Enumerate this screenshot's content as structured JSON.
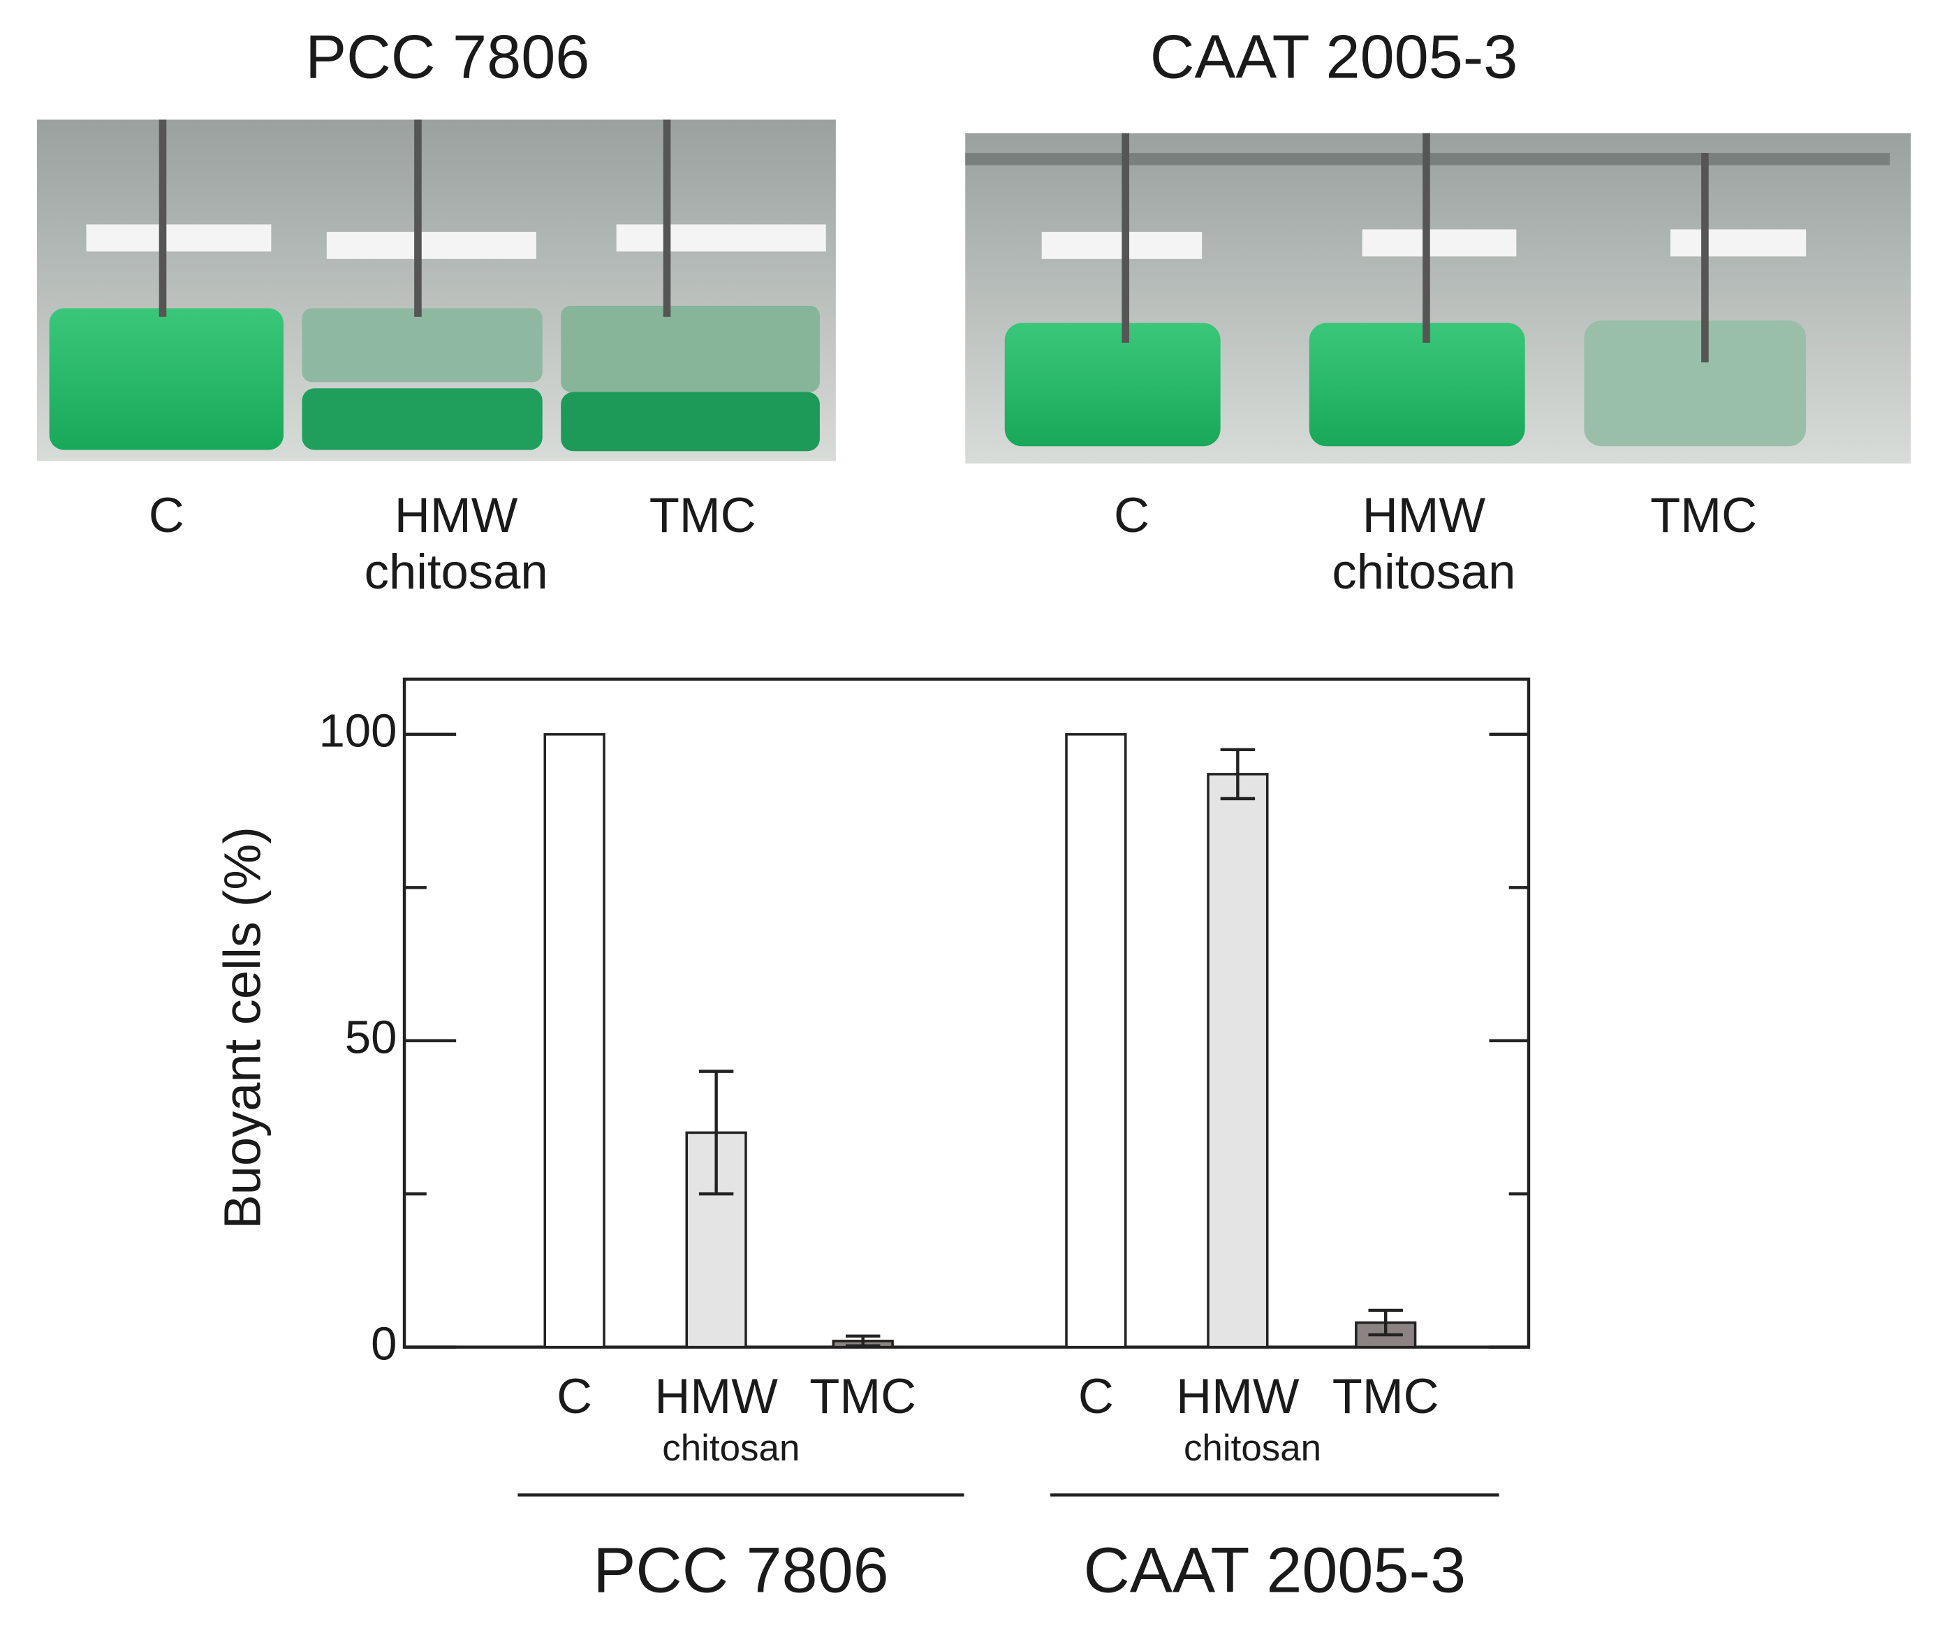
{
  "photos": [
    {
      "title": "PCC 7806",
      "labels": [
        [
          "C"
        ],
        [
          "HMW",
          "chitosan"
        ],
        [
          "TMC"
        ]
      ]
    },
    {
      "title": "CAAT 2005-3",
      "labels": [
        [
          "C"
        ],
        [
          "HMW",
          "chitosan"
        ],
        [
          "TMC"
        ]
      ]
    }
  ],
  "chart_data": {
    "type": "bar",
    "ylabel": "Buoyant cells (%)",
    "categories": [
      "C",
      "HMW",
      "TMC",
      "C",
      "HMW",
      "TMC"
    ],
    "category_sublabels": [
      null,
      "chitosan",
      null,
      null,
      "chitosan",
      null
    ],
    "groups": [
      "PCC 7806",
      "CAAT 2005-3"
    ],
    "values": [
      100,
      35,
      1,
      100,
      93.5,
      4
    ],
    "errors": [
      null,
      10,
      0.8,
      null,
      4,
      2
    ],
    "colors": [
      "#ffffff",
      "#e4e4e4",
      "#8c8482",
      "#ffffff",
      "#e4e4e4",
      "#8c8482"
    ],
    "ylim": [
      0,
      109
    ],
    "yticks": [
      0,
      50,
      100
    ],
    "yminorticks": [
      25,
      75
    ]
  }
}
